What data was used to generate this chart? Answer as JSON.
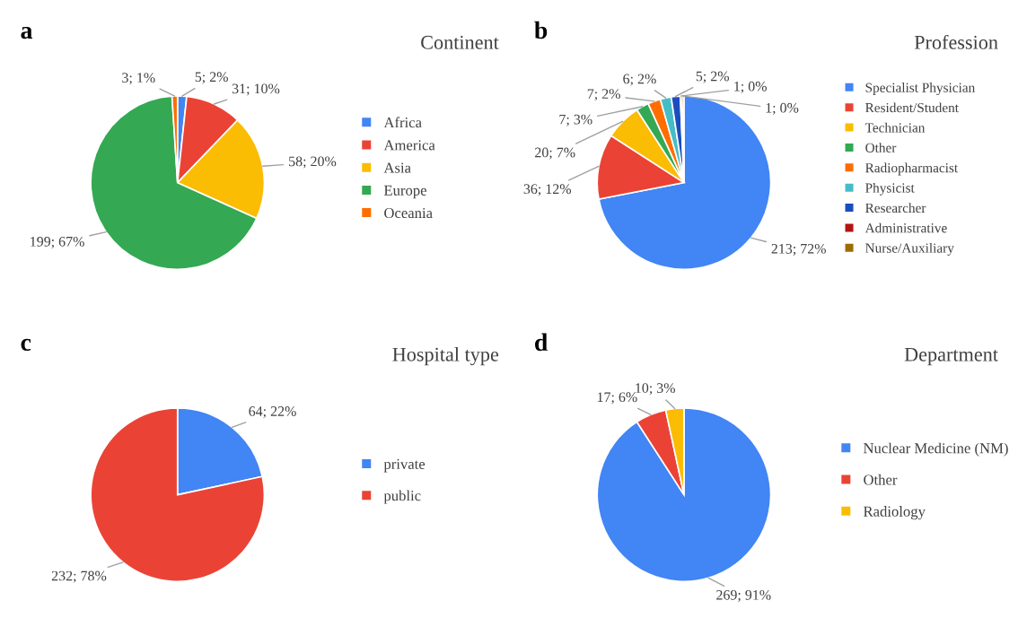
{
  "chart_data": [
    {
      "type": "pie",
      "title": "Continent",
      "annotations": [
        "a"
      ],
      "legend": "right",
      "categories": [
        "Africa",
        "America",
        "Asia",
        "Europe",
        "Oceania"
      ],
      "values": [
        5,
        31,
        58,
        199,
        3
      ],
      "value_labels": [
        "5; 2%",
        "31; 10%",
        "58; 20%",
        "199; 67%",
        "3; 1%"
      ],
      "colors": [
        "#4285f4",
        "#ea4335",
        "#fbbc04",
        "#34a853",
        "#ff6d01"
      ]
    },
    {
      "type": "pie",
      "title": "Profession",
      "annotations": [
        "b"
      ],
      "legend": "right",
      "categories": [
        "Specialist Physician",
        "Resident/Student",
        "Technician",
        "Other",
        "Radiopharmacist",
        "Physicist",
        "Researcher",
        "Administrative",
        "Nurse/Auxiliary"
      ],
      "values": [
        213,
        36,
        20,
        7,
        7,
        6,
        5,
        1,
        1
      ],
      "value_labels": [
        "213; 72%",
        "36; 12%",
        "20; 7%",
        "7; 3%",
        "7; 2%",
        "6; 2%",
        "5; 2%",
        "1; 0%",
        "1; 0%"
      ],
      "colors": [
        "#4285f4",
        "#ea4335",
        "#fbbc04",
        "#34a853",
        "#ff6d01",
        "#46bdc6",
        "#1c4dbf",
        "#b31412",
        "#9c6d00"
      ]
    },
    {
      "type": "pie",
      "title": "Hospital type",
      "annotations": [
        "c"
      ],
      "legend": "right",
      "categories": [
        "private",
        "public"
      ],
      "values": [
        64,
        232
      ],
      "value_labels": [
        "64; 22%",
        "232; 78%"
      ],
      "colors": [
        "#4285f4",
        "#ea4335"
      ]
    },
    {
      "type": "pie",
      "title": "Department",
      "annotations": [
        "d"
      ],
      "legend": "right",
      "categories": [
        "Nuclear Medicine (NM)",
        "Other",
        "Radiology"
      ],
      "values": [
        269,
        17,
        10
      ],
      "value_labels": [
        "269; 91%",
        "17; 6%",
        "10; 3%"
      ],
      "colors": [
        "#4285f4",
        "#ea4335",
        "#fbbc04"
      ]
    }
  ]
}
